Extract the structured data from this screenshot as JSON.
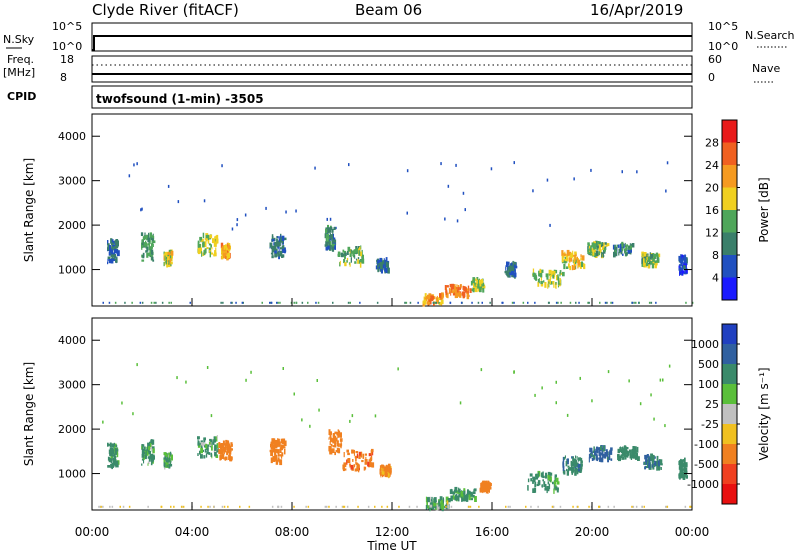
{
  "header": {
    "station": "Clyde River (fitACF)",
    "beam": "Beam 06",
    "date": "16/Apr/2019"
  },
  "panels": {
    "nsky_label": "N.Sky",
    "nsearch_label": "N.Search",
    "freq_label_1": "Freq.",
    "freq_label_2": "[MHz]",
    "nave_label": "Nave",
    "cpid_label": "CPID",
    "cpid_value": "twofsound (1-min) -3505",
    "nsky_ticks": [
      "10^5",
      "10^0"
    ],
    "nsearch_ticks": [
      "10^5",
      "10^0"
    ],
    "freq_ticks": [
      "18",
      "8"
    ],
    "nave_ticks": [
      "60",
      "0"
    ]
  },
  "chart_data": [
    {
      "type": "heatmap",
      "name": "power",
      "title": "",
      "xlabel": "",
      "ylabel": "Slant Range [km]",
      "xlim": [
        0,
        24
      ],
      "ylim": [
        180,
        4500
      ],
      "yticks": [
        1000,
        2000,
        3000,
        4000
      ],
      "colorbar": {
        "label": "Power [dB]",
        "ticks": [
          "4",
          "8",
          "12",
          "16",
          "20",
          "24",
          "28"
        ],
        "colors": [
          "#1a1aff",
          "#2050c0",
          "#3a7f6a",
          "#4fa65a",
          "#f0d020",
          "#f59a20",
          "#f06020",
          "#e81a1a"
        ]
      },
      "regions": [
        {
          "t": 0.8,
          "r": 1400,
          "dt": 0.4,
          "dr": 500,
          "v": 8
        },
        {
          "t": 2.2,
          "r": 1500,
          "dt": 0.5,
          "dr": 600,
          "v": 12
        },
        {
          "t": 3.0,
          "r": 1250,
          "dt": 0.3,
          "dr": 300,
          "v": 18
        },
        {
          "t": 4.6,
          "r": 1550,
          "dt": 0.8,
          "dr": 450,
          "v": 16
        },
        {
          "t": 5.3,
          "r": 1400,
          "dt": 0.3,
          "dr": 300,
          "v": 22
        },
        {
          "t": 7.4,
          "r": 1500,
          "dt": 0.6,
          "dr": 500,
          "v": 8
        },
        {
          "t": 9.5,
          "r": 1700,
          "dt": 0.4,
          "dr": 500,
          "v": 10
        },
        {
          "t": 10.3,
          "r": 1300,
          "dt": 1.0,
          "dr": 400,
          "v": 14
        },
        {
          "t": 11.6,
          "r": 1100,
          "dt": 0.5,
          "dr": 250,
          "v": 8
        },
        {
          "t": 13.6,
          "r": 320,
          "dt": 0.8,
          "dr": 220,
          "v": 22
        },
        {
          "t": 14.6,
          "r": 520,
          "dt": 1.0,
          "dr": 250,
          "v": 24
        },
        {
          "t": 15.4,
          "r": 650,
          "dt": 0.5,
          "dr": 250,
          "v": 16
        },
        {
          "t": 16.7,
          "r": 1000,
          "dt": 0.4,
          "dr": 300,
          "v": 8
        },
        {
          "t": 18.2,
          "r": 800,
          "dt": 1.2,
          "dr": 350,
          "v": 16
        },
        {
          "t": 19.2,
          "r": 1200,
          "dt": 0.9,
          "dr": 350,
          "v": 18
        },
        {
          "t": 20.2,
          "r": 1450,
          "dt": 0.8,
          "dr": 300,
          "v": 14
        },
        {
          "t": 21.2,
          "r": 1450,
          "dt": 0.8,
          "dr": 250,
          "v": 10
        },
        {
          "t": 22.3,
          "r": 1200,
          "dt": 0.7,
          "dr": 300,
          "v": 14
        },
        {
          "t": 23.6,
          "r": 1100,
          "dt": 0.3,
          "dr": 400,
          "v": 6
        }
      ]
    },
    {
      "type": "heatmap",
      "name": "velocity",
      "title": "",
      "xlabel": "Time UT",
      "ylabel": "Slant Range [km]",
      "xlim": [
        0,
        24
      ],
      "ylim": [
        180,
        4500
      ],
      "yticks": [
        1000,
        2000,
        3000,
        4000
      ],
      "xticks": [
        "00:00",
        "04:00",
        "08:00",
        "12:00",
        "16:00",
        "20:00",
        "00:00"
      ],
      "colorbar": {
        "label": "Velocity [m s⁻¹]",
        "ticks": [
          "1000",
          "500",
          "100",
          "25",
          "-25",
          "-100",
          "-500",
          "-1000"
        ],
        "colors": [
          "#2040c0",
          "#3060a0",
          "#3a8a6a",
          "#5abf3a",
          "#c0c0c0",
          "#f0c020",
          "#f08020",
          "#f04020",
          "#e81010"
        ]
      },
      "regions": [
        {
          "t": 0.8,
          "r": 1400,
          "dt": 0.4,
          "dr": 500,
          "v": 200
        },
        {
          "t": 2.2,
          "r": 1500,
          "dt": 0.5,
          "dr": 600,
          "v": 150
        },
        {
          "t": 3.0,
          "r": 1300,
          "dt": 0.3,
          "dr": 300,
          "v": 120
        },
        {
          "t": 4.6,
          "r": 1600,
          "dt": 0.8,
          "dr": 450,
          "v": 150
        },
        {
          "t": 5.3,
          "r": 1500,
          "dt": 0.5,
          "dr": 400,
          "v": -300
        },
        {
          "t": 7.4,
          "r": 1500,
          "dt": 0.6,
          "dr": 500,
          "v": -250
        },
        {
          "t": 9.7,
          "r": 1700,
          "dt": 0.5,
          "dr": 500,
          "v": -300
        },
        {
          "t": 10.6,
          "r": 1300,
          "dt": 1.2,
          "dr": 450,
          "v": -400
        },
        {
          "t": 11.7,
          "r": 1050,
          "dt": 0.4,
          "dr": 250,
          "v": -200
        },
        {
          "t": 13.8,
          "r": 320,
          "dt": 0.9,
          "dr": 230,
          "v": 120
        },
        {
          "t": 14.8,
          "r": 520,
          "dt": 1.0,
          "dr": 250,
          "v": 200
        },
        {
          "t": 15.7,
          "r": 700,
          "dt": 0.4,
          "dr": 200,
          "v": -300
        },
        {
          "t": 18.0,
          "r": 800,
          "dt": 1.2,
          "dr": 400,
          "v": 200
        },
        {
          "t": 19.2,
          "r": 1200,
          "dt": 0.8,
          "dr": 400,
          "v": 400
        },
        {
          "t": 20.3,
          "r": 1450,
          "dt": 0.9,
          "dr": 300,
          "v": 600
        },
        {
          "t": 21.4,
          "r": 1450,
          "dt": 0.8,
          "dr": 250,
          "v": 300
        },
        {
          "t": 22.4,
          "r": 1250,
          "dt": 0.7,
          "dr": 300,
          "v": 500
        },
        {
          "t": 23.6,
          "r": 1100,
          "dt": 0.3,
          "dr": 400,
          "v": 300
        }
      ]
    }
  ]
}
